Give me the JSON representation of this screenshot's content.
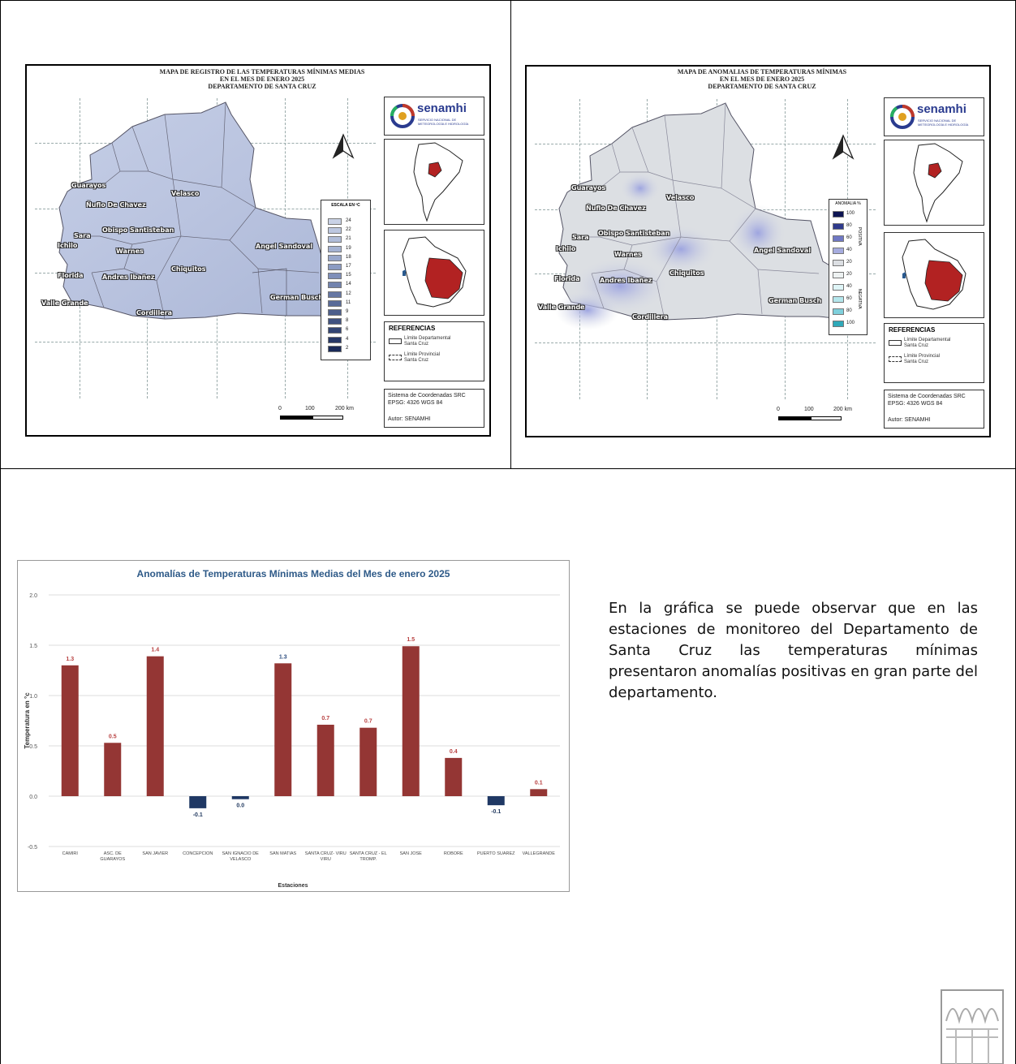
{
  "map1": {
    "title": [
      "MAPA DE REGISTRO DE LAS TEMPERATURAS MÍNIMAS MEDIAS",
      "EN EL MES DE ENERO 2025",
      "DEPARTAMENTO DE SANTA CRUZ"
    ],
    "legend_title": "ESCALA EN ºC",
    "legend_values": [
      "24",
      "22",
      "21",
      "19",
      "18",
      "17",
      "15",
      "14",
      "12",
      "11",
      "9",
      "8",
      "6",
      "4",
      "2"
    ],
    "legend_colors": [
      "#c9d2e6",
      "#bcc7e0",
      "#b0bdd9",
      "#a4b2d2",
      "#98a7cb",
      "#8b9bc2",
      "#7f8fb9",
      "#7283ae",
      "#6677a3",
      "#596b98",
      "#4c5e8c",
      "#3f5180",
      "#324473",
      "#263766",
      "#1a2a58"
    ],
    "labels": [
      "Guarayos",
      "Ñuflo De Chavez",
      "Velasco",
      "Sara",
      "Obispo Santisteban",
      "Ichilo",
      "Warnes",
      "Angel Sandoval",
      "Florida",
      "Andres Ibañez",
      "Chiquitos",
      "Valle Grande",
      "German Busch",
      "Cordillera"
    ]
  },
  "map2": {
    "title": [
      "MAPA DE ANOMALIAS DE TEMPERATURAS MÍNIMAS",
      "EN EL MES DE ENERO 2025",
      "DEPARTAMENTO DE SANTA CRUZ"
    ],
    "legend_title": "ANOMALIA %",
    "legend_positive_label": "POSITIVA",
    "legend_negative_label": "NEGATIVA",
    "legend_values": [
      "100",
      "80",
      "60",
      "40",
      "20",
      "20",
      "40",
      "60",
      "80",
      "100"
    ],
    "legend_colors": [
      "#0d1452",
      "#2f3a8c",
      "#6f78c4",
      "#a6acdf",
      "#dcdfe3",
      "#eef2f2",
      "#dff5f7",
      "#b4e6ec",
      "#7fd0dc",
      "#2fa9b9"
    ],
    "labels": [
      "Guarayos",
      "Ñuflo De Chavez",
      "Velasco",
      "Sara",
      "Obispo Santisteban",
      "Ichilo",
      "Warnes",
      "Angel Sandoval",
      "Florida",
      "Andres Ibañez",
      "Chiquitos",
      "Valle Grande",
      "German Busch",
      "Cordillera"
    ]
  },
  "common": {
    "logo": "senamhi",
    "logo_sub": [
      "SERVICIO NACIONAL DE",
      "METEOROLOGÍA E HIDROLOGÍA"
    ],
    "references_title": "REFERENCIAS",
    "references": [
      [
        "Límite Departamental",
        "Santa Cruz"
      ],
      [
        "Límite Provincial",
        "Santa Cruz"
      ]
    ],
    "coord_system": [
      "Sistema de Coordenadas SRC",
      "EPSG: 4326   WGS 84"
    ],
    "author": "Autor: SENAMHI",
    "scale": [
      "0",
      "100",
      "200 km"
    ]
  },
  "paragraph": "En la gráfica se puede observar que en las estaciones de monitoreo del Departamento de Santa Cruz las temperaturas mínimas presentaron anomalías positivas en gran parte del departamento.",
  "chart_data": {
    "type": "bar",
    "title": "Anomalías de Temperaturas Mínimas Medias del Mes de enero 2025",
    "xlabel": "Estaciones",
    "ylabel": "Temperatura en °c",
    "ylim": [
      -0.5,
      2.0
    ],
    "yticks": [
      "2.0",
      "1.5",
      "1.0",
      "0.5",
      "0.0",
      "-0.5"
    ],
    "grid": true,
    "categories": [
      "CAMIRI",
      "ASC. DE GUARAYOS",
      "SAN JAVIER",
      "CONCEPCION",
      "SAN IGNACIO DE VELASCO",
      "SAN MATIAS",
      "SANTA CRUZ- VIRU VIRU",
      "SANTA CRUZ - EL TROMP.",
      "SAN JOSE",
      "ROBORE",
      "PUERTO SUAREZ",
      "VALLEGRANDE"
    ],
    "values": [
      1.3,
      0.53,
      1.39,
      -0.12,
      -0.03,
      1.32,
      0.71,
      0.68,
      1.49,
      0.38,
      -0.09,
      0.07
    ],
    "data_labels": [
      "1.3",
      "0.5",
      "1.4",
      "-0.1",
      "0.0",
      "1.3",
      "0.7",
      "0.7",
      "1.5",
      "0.4",
      "-0.1",
      "0.1"
    ],
    "label_colors": [
      "#b84040",
      "#b84040",
      "#b84040",
      "#223a60",
      "#223a60",
      "#2f4f80",
      "#b84040",
      "#b84040",
      "#b84040",
      "#b84040",
      "#223a60",
      "#b84040"
    ],
    "positive_color": "#943634",
    "negative_color": "#1f3864"
  }
}
